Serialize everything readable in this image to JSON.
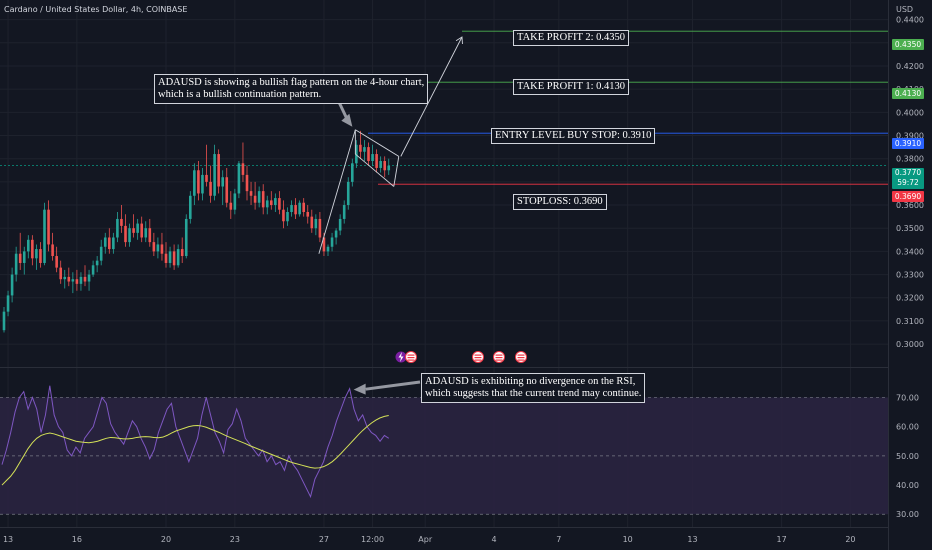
{
  "header": {
    "symbol_title": "Cardano / United States Dollar, 4h, COINBASE",
    "currency": "USD"
  },
  "colors": {
    "background": "#131722",
    "bull": "#26a69a",
    "bear": "#ef5350",
    "take_profit": "#4caf50",
    "entry": "#2962ff",
    "stoploss": "#f23645",
    "rsi_line": "#7e57c2",
    "rsi_ma": "#d4e157",
    "rsi_band": "#2a2340"
  },
  "annotations": {
    "flag_note": "ADAUSD is showing a bullish flag pattern on the 4-hour chart,\nwhich is a bullish continuation pattern.",
    "rsi_note": "ADAUSD is exhibiting no divergence on the RSI,\nwhich suggests that the current trend may continue."
  },
  "levels": {
    "tp2": {
      "label": "TAKE PROFIT 2: 0.4350",
      "price": 0.435,
      "tag": "0.4350"
    },
    "tp1": {
      "label": "TAKE PROFIT 1: 0.4130",
      "price": 0.413,
      "tag": "0.4130"
    },
    "entry": {
      "label": "ENTRY LEVEL BUY STOP: 0.3910",
      "price": 0.391,
      "tag": "0.3910"
    },
    "stop": {
      "label": "STOPLOSS: 0.3690",
      "price": 0.369,
      "tag": "0.3690"
    },
    "current": {
      "price": 0.377,
      "tag": "0.3770",
      "countdown": "59:72"
    }
  },
  "chart_data": {
    "type": "candlestick",
    "price_axis": {
      "ylim": [
        0.294,
        0.442
      ],
      "ticks": [
        "0.4400",
        "0.4300",
        "0.4200",
        "0.4100",
        "0.4000",
        "0.3900",
        "0.3800",
        "0.3700",
        "0.3600",
        "0.3500",
        "0.3400",
        "0.3300",
        "0.3200",
        "0.3100",
        "0.3000"
      ]
    },
    "x_axis": {
      "ticks": [
        {
          "label": "13",
          "i": 1
        },
        {
          "label": "16",
          "i": 18
        },
        {
          "label": "20",
          "i": 40
        },
        {
          "label": "23",
          "i": 57
        },
        {
          "label": "27",
          "i": 79
        },
        {
          "label": "12:00",
          "i": 91
        },
        {
          "label": "Apr",
          "i": 104
        },
        {
          "label": "4",
          "i": 121
        },
        {
          "label": "7",
          "i": 137
        },
        {
          "label": "10",
          "i": 154
        },
        {
          "label": "13",
          "i": 170
        },
        {
          "label": "17",
          "i": 192
        },
        {
          "label": "20",
          "i": 209
        }
      ]
    },
    "candles": [
      [
        0.306,
        0.316,
        0.305,
        0.314
      ],
      [
        0.314,
        0.323,
        0.312,
        0.321
      ],
      [
        0.321,
        0.333,
        0.318,
        0.33
      ],
      [
        0.33,
        0.342,
        0.327,
        0.339
      ],
      [
        0.339,
        0.348,
        0.332,
        0.335
      ],
      [
        0.335,
        0.342,
        0.33,
        0.34
      ],
      [
        0.34,
        0.347,
        0.337,
        0.345
      ],
      [
        0.345,
        0.347,
        0.334,
        0.337
      ],
      [
        0.337,
        0.343,
        0.332,
        0.341
      ],
      [
        0.341,
        0.344,
        0.333,
        0.335
      ],
      [
        0.335,
        0.361,
        0.334,
        0.358
      ],
      [
        0.358,
        0.362,
        0.34,
        0.343
      ],
      [
        0.343,
        0.348,
        0.336,
        0.338
      ],
      [
        0.338,
        0.342,
        0.331,
        0.333
      ],
      [
        0.333,
        0.336,
        0.326,
        0.328
      ],
      [
        0.328,
        0.332,
        0.324,
        0.329
      ],
      [
        0.329,
        0.333,
        0.325,
        0.327
      ],
      [
        0.327,
        0.331,
        0.322,
        0.328
      ],
      [
        0.328,
        0.332,
        0.323,
        0.326
      ],
      [
        0.326,
        0.331,
        0.323,
        0.329
      ],
      [
        0.329,
        0.334,
        0.325,
        0.327
      ],
      [
        0.327,
        0.332,
        0.323,
        0.33
      ],
      [
        0.33,
        0.336,
        0.329,
        0.334
      ],
      [
        0.334,
        0.338,
        0.331,
        0.336
      ],
      [
        0.336,
        0.345,
        0.334,
        0.342
      ],
      [
        0.342,
        0.348,
        0.339,
        0.346
      ],
      [
        0.346,
        0.35,
        0.339,
        0.341
      ],
      [
        0.341,
        0.348,
        0.339,
        0.346
      ],
      [
        0.346,
        0.357,
        0.344,
        0.354
      ],
      [
        0.354,
        0.36,
        0.348,
        0.351
      ],
      [
        0.351,
        0.356,
        0.342,
        0.344
      ],
      [
        0.344,
        0.352,
        0.342,
        0.35
      ],
      [
        0.35,
        0.356,
        0.346,
        0.348
      ],
      [
        0.348,
        0.354,
        0.345,
        0.352
      ],
      [
        0.352,
        0.355,
        0.344,
        0.346
      ],
      [
        0.346,
        0.353,
        0.344,
        0.35
      ],
      [
        0.35,
        0.354,
        0.342,
        0.344
      ],
      [
        0.344,
        0.348,
        0.338,
        0.34
      ],
      [
        0.34,
        0.346,
        0.337,
        0.343
      ],
      [
        0.343,
        0.348,
        0.336,
        0.339
      ],
      [
        0.339,
        0.344,
        0.333,
        0.335
      ],
      [
        0.335,
        0.342,
        0.333,
        0.34
      ],
      [
        0.34,
        0.343,
        0.332,
        0.334
      ],
      [
        0.334,
        0.343,
        0.333,
        0.341
      ],
      [
        0.341,
        0.346,
        0.335,
        0.338
      ],
      [
        0.338,
        0.356,
        0.337,
        0.354
      ],
      [
        0.354,
        0.366,
        0.352,
        0.364
      ],
      [
        0.364,
        0.378,
        0.36,
        0.375
      ],
      [
        0.375,
        0.379,
        0.362,
        0.365
      ],
      [
        0.365,
        0.376,
        0.362,
        0.373
      ],
      [
        0.373,
        0.386,
        0.368,
        0.37
      ],
      [
        0.37,
        0.377,
        0.361,
        0.364
      ],
      [
        0.364,
        0.386,
        0.362,
        0.382
      ],
      [
        0.382,
        0.384,
        0.365,
        0.368
      ],
      [
        0.368,
        0.375,
        0.36,
        0.372
      ],
      [
        0.372,
        0.376,
        0.359,
        0.361
      ],
      [
        0.361,
        0.366,
        0.354,
        0.358
      ],
      [
        0.358,
        0.367,
        0.356,
        0.365
      ],
      [
        0.365,
        0.379,
        0.363,
        0.378
      ],
      [
        0.378,
        0.387,
        0.37,
        0.373
      ],
      [
        0.373,
        0.377,
        0.362,
        0.366
      ],
      [
        0.366,
        0.37,
        0.36,
        0.364
      ],
      [
        0.364,
        0.37,
        0.358,
        0.361
      ],
      [
        0.361,
        0.368,
        0.359,
        0.366
      ],
      [
        0.366,
        0.369,
        0.356,
        0.359
      ],
      [
        0.359,
        0.364,
        0.356,
        0.362
      ],
      [
        0.362,
        0.366,
        0.358,
        0.36
      ],
      [
        0.36,
        0.365,
        0.357,
        0.363
      ],
      [
        0.363,
        0.366,
        0.356,
        0.358
      ],
      [
        0.358,
        0.362,
        0.35,
        0.353
      ],
      [
        0.353,
        0.359,
        0.351,
        0.357
      ],
      [
        0.357,
        0.362,
        0.355,
        0.36
      ],
      [
        0.36,
        0.363,
        0.354,
        0.356
      ],
      [
        0.356,
        0.362,
        0.355,
        0.361
      ],
      [
        0.361,
        0.363,
        0.355,
        0.357
      ],
      [
        0.357,
        0.36,
        0.352,
        0.355
      ],
      [
        0.355,
        0.358,
        0.348,
        0.35
      ],
      [
        0.35,
        0.356,
        0.347,
        0.354
      ],
      [
        0.354,
        0.357,
        0.344,
        0.346
      ],
      [
        0.346,
        0.348,
        0.338,
        0.34
      ],
      [
        0.34,
        0.343,
        0.338,
        0.342
      ],
      [
        0.342,
        0.348,
        0.34,
        0.346
      ],
      [
        0.346,
        0.35,
        0.343,
        0.349
      ],
      [
        0.349,
        0.356,
        0.347,
        0.354
      ],
      [
        0.354,
        0.362,
        0.352,
        0.36
      ],
      [
        0.36,
        0.372,
        0.358,
        0.37
      ],
      [
        0.37,
        0.38,
        0.368,
        0.378
      ],
      [
        0.378,
        0.388,
        0.376,
        0.386
      ],
      [
        0.386,
        0.392,
        0.38,
        0.383
      ],
      [
        0.383,
        0.388,
        0.379,
        0.385
      ],
      [
        0.385,
        0.387,
        0.377,
        0.379
      ],
      [
        0.379,
        0.386,
        0.377,
        0.382
      ],
      [
        0.382,
        0.384,
        0.374,
        0.376
      ],
      [
        0.376,
        0.381,
        0.374,
        0.379
      ],
      [
        0.379,
        0.381,
        0.372,
        0.375
      ],
      [
        0.375,
        0.38,
        0.373,
        0.377
      ]
    ],
    "rsi_axis": {
      "ylim": [
        27,
        77
      ],
      "ticks": [
        "70.00",
        "60.00",
        "50.00",
        "40.00",
        "30.00"
      ],
      "band": [
        30,
        70
      ]
    },
    "rsi": [
      47,
      52,
      58,
      65,
      70,
      72,
      66,
      70,
      66,
      58,
      64,
      74,
      64,
      60,
      58,
      52,
      50,
      53,
      51,
      56,
      58,
      60,
      65,
      70,
      68,
      61,
      58,
      56,
      54,
      58,
      62,
      60,
      56,
      53,
      49,
      52,
      58,
      62,
      66,
      68,
      60,
      56,
      52,
      48,
      52,
      56,
      64,
      70,
      64,
      58,
      55,
      51,
      59,
      61,
      66,
      62,
      56,
      54,
      52,
      50,
      52,
      48,
      50,
      47,
      48,
      45,
      50,
      47,
      45,
      42,
      39,
      36,
      42,
      45,
      48,
      53,
      57,
      62,
      66,
      70,
      73,
      66,
      62,
      64,
      60,
      58,
      57,
      55,
      57,
      56
    ],
    "rsi_ma": [
      40,
      41.5,
      43,
      45,
      47.5,
      50,
      52.5,
      54.5,
      56,
      57,
      57.5,
      57.8,
      57.5,
      57,
      56.5,
      56,
      55.5,
      55,
      54.8,
      54.6,
      54.5,
      54.7,
      55,
      55.5,
      56,
      56.3,
      56.2,
      56,
      55.8,
      55.8,
      56,
      56.3,
      56.5,
      56.6,
      56.5,
      56.3,
      56.2,
      56.4,
      57,
      57.8,
      58.5,
      59,
      59.5,
      60,
      60.3,
      60.4,
      60.2,
      59.8,
      59.2,
      58.6,
      58,
      57.3,
      56.6,
      56,
      55.4,
      54.8,
      54.2,
      53.5,
      52.9,
      52.3,
      51.7,
      51.1,
      50.5,
      49.9,
      49.3,
      48.7,
      48.1,
      47.6,
      47.2,
      46.8,
      46.4,
      46,
      45.8,
      45.9,
      46.3,
      47,
      48,
      49.3,
      50.8,
      52.4,
      54,
      55.6,
      57.2,
      58.7,
      60,
      61.2,
      62.2,
      63,
      63.5,
      63.8
    ]
  }
}
